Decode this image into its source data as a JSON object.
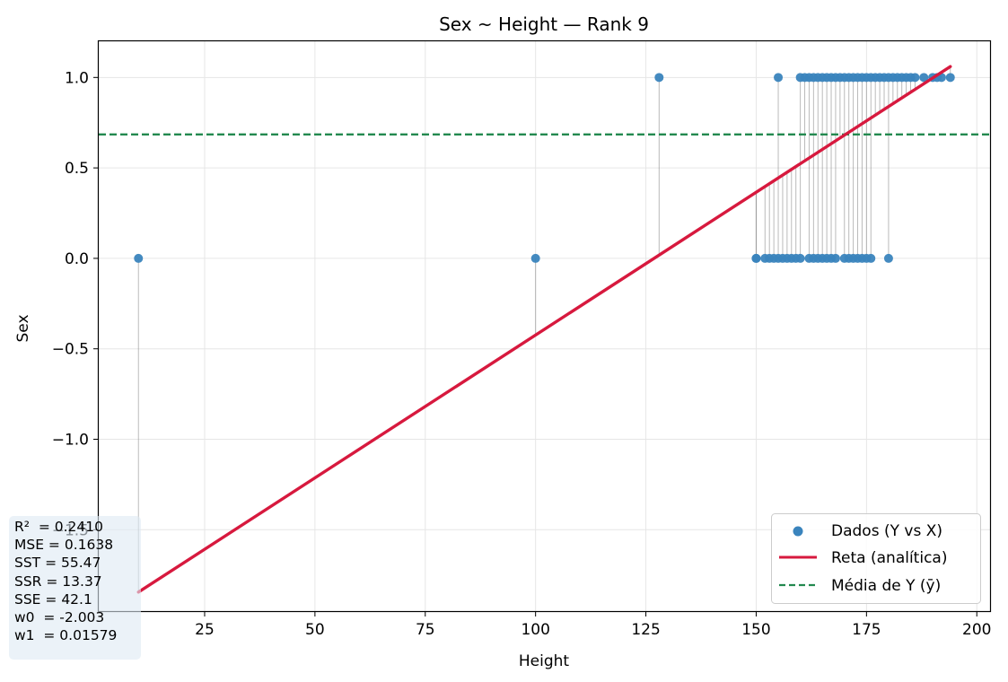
{
  "chart_data": {
    "type": "scatter",
    "title": "Sex ~ Height — Rank 9",
    "xlabel": "Height",
    "ylabel": "Sex",
    "xlim": [
      1,
      203
    ],
    "ylim": [
      -1.95,
      1.2
    ],
    "xticks": [
      25,
      50,
      75,
      100,
      125,
      150,
      175,
      200
    ],
    "xtick_labels": [
      "25",
      "50",
      "75",
      "100",
      "125",
      "150",
      "175",
      "200"
    ],
    "yticks": [
      -1.5,
      -1.0,
      -0.5,
      0.0,
      0.5,
      1.0
    ],
    "ytick_labels": [
      "−1.5",
      "−1.0",
      "−0.5",
      "0.0",
      "0.5",
      "1.0"
    ],
    "grid": true,
    "legend_position": "lower-right",
    "series": [
      {
        "name": "Dados (Y vs X)",
        "kind": "scatter",
        "color": "#3a84bd",
        "points": [
          [
            10,
            0
          ],
          [
            100,
            0
          ],
          [
            128,
            1
          ],
          [
            150,
            0
          ],
          [
            150,
            0
          ],
          [
            152,
            0
          ],
          [
            153,
            0
          ],
          [
            154,
            0
          ],
          [
            155,
            0
          ],
          [
            155,
            1
          ],
          [
            156,
            0
          ],
          [
            157,
            0
          ],
          [
            158,
            0
          ],
          [
            159,
            0
          ],
          [
            160,
            1
          ],
          [
            160,
            0
          ],
          [
            161,
            1
          ],
          [
            162,
            0
          ],
          [
            162,
            1
          ],
          [
            163,
            1
          ],
          [
            163,
            0
          ],
          [
            164,
            0
          ],
          [
            164,
            1
          ],
          [
            165,
            1
          ],
          [
            165,
            0
          ],
          [
            166,
            0
          ],
          [
            166,
            1
          ],
          [
            167,
            1
          ],
          [
            167,
            0
          ],
          [
            168,
            1
          ],
          [
            168,
            0
          ],
          [
            169,
            1
          ],
          [
            170,
            0
          ],
          [
            170,
            1
          ],
          [
            171,
            1
          ],
          [
            171,
            0
          ],
          [
            172,
            0
          ],
          [
            172,
            1
          ],
          [
            173,
            1
          ],
          [
            173,
            0
          ],
          [
            174,
            1
          ],
          [
            174,
            0
          ],
          [
            175,
            1
          ],
          [
            175,
            0
          ],
          [
            176,
            1
          ],
          [
            176,
            0
          ],
          [
            177,
            1
          ],
          [
            178,
            1
          ],
          [
            179,
            1
          ],
          [
            180,
            1
          ],
          [
            180,
            0
          ],
          [
            181,
            1
          ],
          [
            182,
            1
          ],
          [
            183,
            1
          ],
          [
            184,
            1
          ],
          [
            185,
            1
          ],
          [
            186,
            1
          ],
          [
            188,
            1
          ],
          [
            190,
            1
          ],
          [
            191,
            1
          ],
          [
            192,
            1
          ],
          [
            194,
            1
          ]
        ]
      },
      {
        "name": "Reta (analítica)",
        "kind": "line",
        "color": "#d7193e",
        "intercept": -2.003,
        "slope": 0.01579,
        "x_range": [
          10,
          194
        ]
      },
      {
        "name": "Média de Y (ȳ)",
        "kind": "hline",
        "color": "#23894f",
        "y": 0.685
      }
    ],
    "stats_box": [
      "R²  = 0.2410",
      "MSE = 0.1638",
      "SST = 55.47",
      "SSR = 13.37",
      "SSE = 42.1",
      "w0  = -2.003",
      "w1  = 0.01579"
    ]
  }
}
